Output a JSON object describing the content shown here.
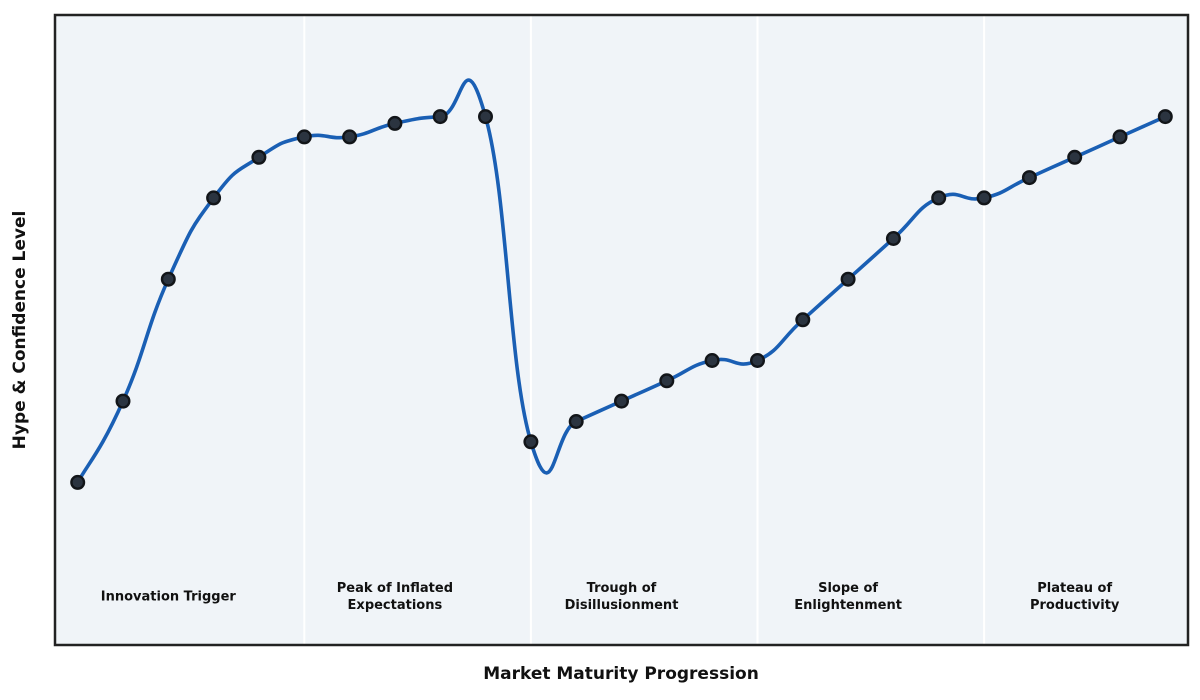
{
  "chart_data": {
    "type": "line",
    "xlabel": "Market Maturity Progression",
    "ylabel": "Hype & Confidence Level",
    "x": [
      0,
      1,
      2,
      3,
      4,
      5,
      6,
      7,
      8,
      9,
      10,
      11,
      12,
      13,
      14,
      15,
      16,
      17,
      18,
      19,
      20,
      21,
      22,
      23,
      24
    ],
    "values": [
      20,
      32,
      50,
      62,
      68,
      71,
      71,
      73,
      74,
      74,
      26,
      29,
      32,
      35,
      38,
      38,
      44,
      50,
      56,
      62,
      62,
      65,
      68,
      71,
      74
    ],
    "xlim": [
      -0.5,
      24.5
    ],
    "ylim": [
      -4,
      89
    ],
    "grid": false,
    "smooth": "cubic-spline-with-overshoot",
    "phase_boundaries_x": [
      5,
      10,
      15,
      20
    ],
    "phases": [
      {
        "label": "Innovation Trigger",
        "center_x": 2
      },
      {
        "label": "Peak of Inflated\nExpectations",
        "center_x": 7
      },
      {
        "label": "Trough of\nDisillusionment",
        "center_x": 12
      },
      {
        "label": "Slope of\nEnlightenment",
        "center_x": 17
      },
      {
        "label": "Plateau of\nProductivity",
        "center_x": 22
      }
    ],
    "style": {
      "line_color": "#1a5fb4",
      "line_width": 3.6,
      "marker_fill": "#2b3440",
      "marker_edge": "#121519",
      "marker_radius": 6.3,
      "marker_edge_width": 2.4,
      "plot_background": "#f0f4f8",
      "divider_color": "#ffffff",
      "border_color": "#222222",
      "label_color": "#111111"
    }
  }
}
